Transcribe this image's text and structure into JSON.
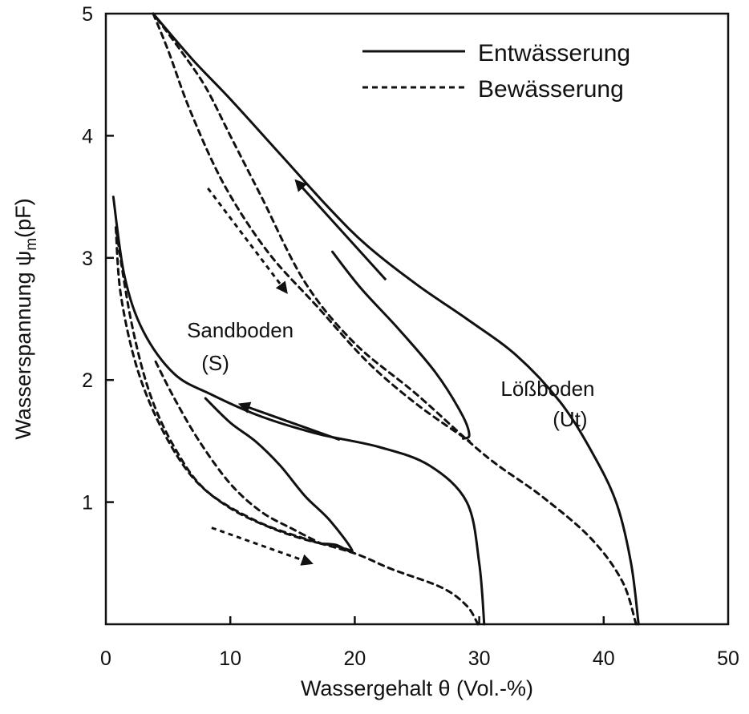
{
  "chart_data": {
    "type": "line",
    "xlabel": "Wassergehalt θ (Vol.-%)",
    "ylabel_main": "Wasserspannung ψ",
    "ylabel_sub": "m",
    "ylabel_unit": "(pF)",
    "xlim": [
      0,
      50
    ],
    "ylim": [
      0,
      5
    ],
    "x_ticks": [
      "0",
      "10",
      "20",
      "30",
      "40",
      "50"
    ],
    "y_ticks": [
      "1",
      "2",
      "3",
      "4",
      "5"
    ],
    "grid": false,
    "legend_position": "top-right",
    "legend": [
      {
        "label": "Entwässerung",
        "style": "solid"
      },
      {
        "label": "Bewässerung",
        "style": "dashed"
      }
    ],
    "annotations": [
      {
        "text": "Sandboden",
        "x": 10.8,
        "y": 2.35
      },
      {
        "text": "(S)",
        "x": 8.8,
        "y": 2.08
      },
      {
        "text": "Lößboden",
        "x": 35.5,
        "y": 1.87
      },
      {
        "text": "(Ut)",
        "x": 37.3,
        "y": 1.62
      }
    ],
    "series": [
      {
        "group": "Lößboden",
        "style": "solid",
        "points": [
          [
            42.8,
            0
          ],
          [
            42.2,
            0.5
          ],
          [
            41,
            1
          ],
          [
            39,
            1.42
          ],
          [
            36.5,
            1.82
          ],
          [
            33,
            2.2
          ],
          [
            29,
            2.5
          ],
          [
            25,
            2.78
          ],
          [
            21,
            3.1
          ],
          [
            18,
            3.4
          ],
          [
            14,
            3.85
          ],
          [
            10,
            4.3
          ],
          [
            7,
            4.62
          ],
          [
            3.8,
            5
          ]
        ]
      },
      {
        "group": "Lößboden",
        "style": "solid",
        "points": [
          [
            18.2,
            3.05
          ],
          [
            20.5,
            2.75
          ],
          [
            23.5,
            2.42
          ],
          [
            26.5,
            2.06
          ],
          [
            28.6,
            1.72
          ],
          [
            29.2,
            1.55
          ],
          [
            28.7,
            1.52
          ]
        ]
      },
      {
        "group": "Lößboden",
        "style": "dashed",
        "points": [
          [
            42.6,
            0
          ],
          [
            41.5,
            0.35
          ],
          [
            39,
            0.7
          ],
          [
            35,
            1.05
          ],
          [
            30.5,
            1.38
          ],
          [
            25,
            1.88
          ],
          [
            20,
            2.3
          ],
          [
            16,
            2.8
          ],
          [
            12.5,
            3.5
          ],
          [
            10,
            4
          ],
          [
            8,
            4.4
          ],
          [
            6,
            4.7
          ],
          [
            3.8,
            5
          ]
        ]
      },
      {
        "group": "Lößboden",
        "style": "dashed",
        "points": [
          [
            3.8,
            5
          ],
          [
            5,
            4.7
          ],
          [
            6.8,
            4.2
          ],
          [
            9.5,
            3.6
          ],
          [
            13,
            3.05
          ],
          [
            17,
            2.6
          ],
          [
            21,
            2.15
          ],
          [
            25,
            1.8
          ],
          [
            29.2,
            1.5
          ]
        ]
      },
      {
        "group": "Sandboden",
        "style": "solid",
        "points": [
          [
            30.4,
            0
          ],
          [
            30,
            0.5
          ],
          [
            29,
            1
          ],
          [
            26,
            1.3
          ],
          [
            22,
            1.45
          ],
          [
            17,
            1.56
          ],
          [
            12.5,
            1.7
          ],
          [
            8.5,
            1.88
          ],
          [
            5.5,
            2.05
          ],
          [
            3,
            2.4
          ],
          [
            1.5,
            2.85
          ],
          [
            0.6,
            3.5
          ]
        ]
      },
      {
        "group": "Sandboden",
        "style": "solid",
        "points": [
          [
            8,
            1.85
          ],
          [
            10,
            1.65
          ],
          [
            12,
            1.5
          ],
          [
            14,
            1.3
          ],
          [
            16,
            1.05
          ],
          [
            18,
            0.85
          ],
          [
            19.8,
            0.6
          ],
          [
            18.5,
            0.65
          ],
          [
            17.3,
            0.66
          ]
        ]
      },
      {
        "group": "Sandboden",
        "style": "dashed",
        "points": [
          [
            29.9,
            0
          ],
          [
            29,
            0.15
          ],
          [
            27,
            0.3
          ],
          [
            23,
            0.45
          ],
          [
            20,
            0.58
          ],
          [
            16,
            0.7
          ],
          [
            12,
            0.85
          ],
          [
            8,
            1.1
          ],
          [
            5.5,
            1.45
          ],
          [
            3.5,
            1.9
          ],
          [
            2,
            2.5
          ],
          [
            0.8,
            3.25
          ]
        ]
      },
      {
        "group": "Sandboden",
        "style": "dashed",
        "points": [
          [
            0.8,
            3.25
          ],
          [
            1.2,
            2.7
          ],
          [
            2.5,
            2.1
          ],
          [
            4.5,
            1.6
          ],
          [
            7,
            1.2
          ],
          [
            10,
            0.95
          ],
          [
            13.5,
            0.78
          ],
          [
            16.5,
            0.68
          ],
          [
            18.5,
            0.64
          ],
          [
            19.8,
            0.6
          ]
        ]
      },
      {
        "group": "Sandboden",
        "style": "dashed",
        "points": [
          [
            4,
            2.15
          ],
          [
            5.5,
            1.85
          ],
          [
            7.5,
            1.5
          ],
          [
            10,
            1.15
          ],
          [
            12.5,
            0.92
          ],
          [
            15,
            0.78
          ],
          [
            17.3,
            0.66
          ]
        ]
      }
    ],
    "arrows": [
      {
        "style": "solid",
        "from": [
          22.5,
          2.82
        ],
        "to": [
          15.3,
          3.63
        ]
      },
      {
        "style": "solid",
        "from": [
          18.8,
          1.51
        ],
        "to": [
          10.8,
          1.8
        ]
      },
      {
        "style": "dashed",
        "from": [
          8.2,
          3.57
        ],
        "to": [
          14.5,
          2.72
        ]
      },
      {
        "style": "dashed",
        "from": [
          8.5,
          0.79
        ],
        "to": [
          16.5,
          0.5
        ]
      }
    ]
  }
}
